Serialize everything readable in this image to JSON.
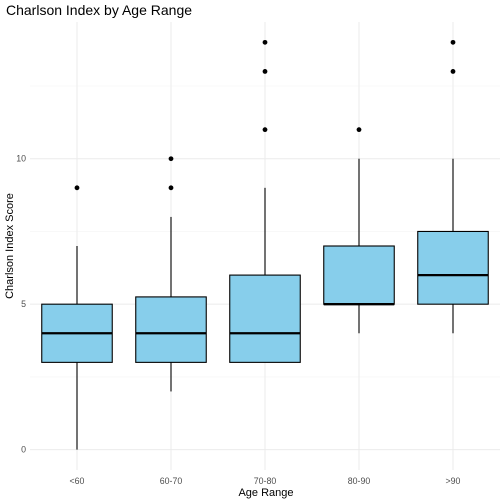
{
  "chart_data": {
    "type": "boxplot",
    "title": "Charlson Index by Age Range",
    "xlabel": "Age Range",
    "ylabel": "Charlson Index Score",
    "categories": [
      "<60",
      "60-70",
      "70-80",
      "80-90",
      ">90"
    ],
    "y_ticks": [
      0,
      5,
      10
    ],
    "ylim": [
      -0.7,
      14.7
    ],
    "grid": true,
    "legend": "none",
    "box_fill": "#87CEEB",
    "box_stroke": "#000000",
    "boxes": [
      {
        "category": "<60",
        "lower_whisker": 0,
        "q1": 3,
        "median": 4,
        "q3": 5,
        "upper_whisker": 7,
        "outliers": [
          9
        ]
      },
      {
        "category": "60-70",
        "lower_whisker": 2,
        "q1": 3,
        "median": 4,
        "q3": 5.25,
        "upper_whisker": 8,
        "outliers": [
          9,
          10
        ]
      },
      {
        "category": "70-80",
        "lower_whisker": 3,
        "q1": 3,
        "median": 4,
        "q3": 6,
        "upper_whisker": 9,
        "outliers": [
          11,
          13,
          14
        ]
      },
      {
        "category": "80-90",
        "lower_whisker": 4,
        "q1": 5,
        "median": 5,
        "q3": 7,
        "upper_whisker": 10,
        "outliers": [
          11
        ]
      },
      {
        "category": ">90",
        "lower_whisker": 4,
        "q1": 5,
        "median": 6,
        "q3": 7.5,
        "upper_whisker": 10,
        "outliers": [
          13,
          14
        ]
      }
    ]
  }
}
